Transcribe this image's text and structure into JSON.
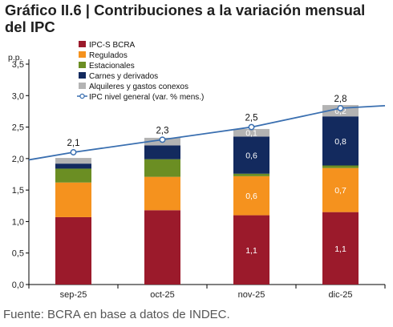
{
  "title": "Gráfico II.6 | Contribuciones a la variación mensual del IPC",
  "source": "Fuente: BCRA en base a datos de INDEC.",
  "chart_data": {
    "type": "bar",
    "stacked": true,
    "unit_label": "p.p.",
    "categories": [
      "sep-25",
      "oct-25",
      "nov-25",
      "dic-25"
    ],
    "ylim": [
      0,
      3.5
    ],
    "yticks": [
      "0,0",
      "0,5",
      "1,0",
      "1,5",
      "2,0",
      "2,5",
      "3,0",
      "3,5"
    ],
    "series": [
      {
        "name": "IPC-S BCRA",
        "color": "#9b1a2b",
        "values": [
          1.07,
          1.18,
          1.1,
          1.15
        ],
        "labels": [
          "",
          "",
          "1,1",
          "1,1"
        ]
      },
      {
        "name": "Regulados",
        "color": "#f5921e",
        "values": [
          0.55,
          0.53,
          0.62,
          0.7
        ],
        "labels": [
          "",
          "",
          "0,6",
          "0,7"
        ]
      },
      {
        "name": "Estacionales",
        "color": "#6b8e23",
        "values": [
          0.22,
          0.28,
          0.04,
          0.04
        ],
        "labels": [
          "",
          "",
          "",
          ""
        ]
      },
      {
        "name": "Carnes y derivados",
        "color": "#132a5e",
        "values": [
          0.08,
          0.22,
          0.59,
          0.78
        ],
        "labels": [
          "",
          "",
          "0,6",
          "0,8"
        ]
      },
      {
        "name": "Alquileres y gastos conexos",
        "color": "#b3b3b3",
        "values": [
          0.09,
          0.12,
          0.12,
          0.18
        ],
        "labels": [
          "",
          "",
          "0,1",
          "0,2"
        ]
      }
    ],
    "line": {
      "name": "IPC nivel general (var. % mens.)",
      "color": "#3a6fb0",
      "values": [
        2.1,
        2.3,
        2.5,
        2.8
      ],
      "labels": [
        "2,1",
        "2,3",
        "2,5",
        "2,8"
      ]
    },
    "legend_position": "top-left",
    "grid": false
  }
}
